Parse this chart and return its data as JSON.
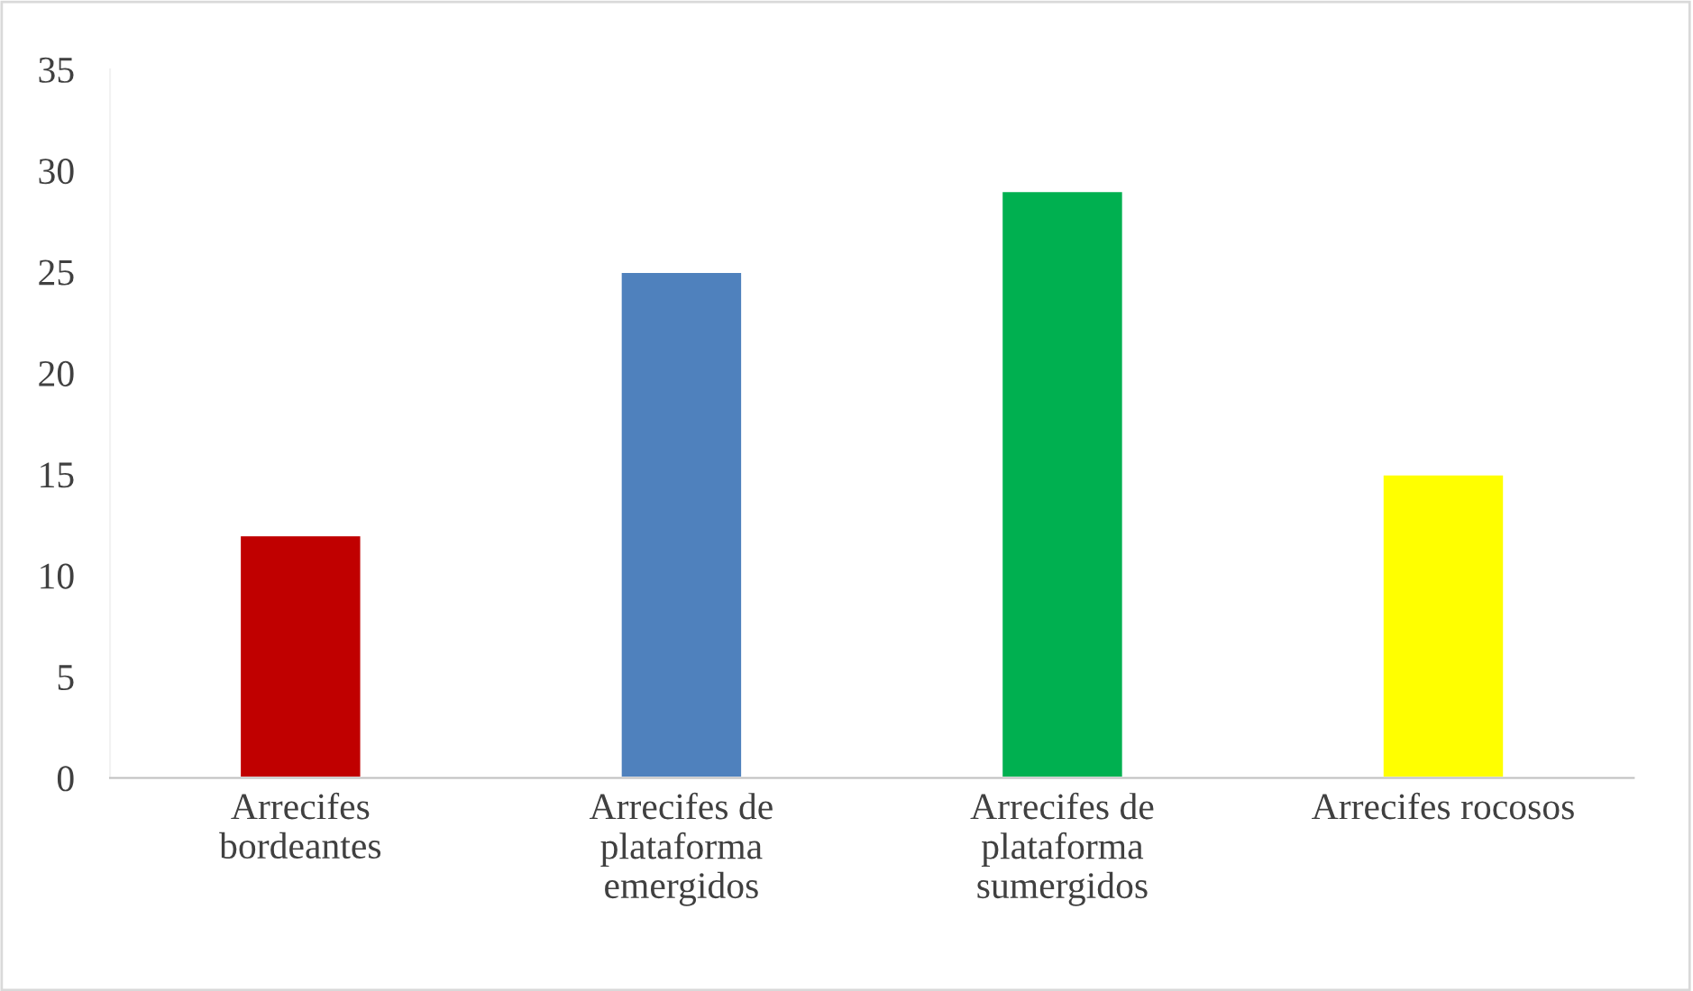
{
  "chart_data": {
    "type": "bar",
    "categories": [
      "Arrecifes\nbordeantes",
      "Arrecifes de\nplataforma\nemergidos",
      "Arrecifes de\nplataforma\nsumergidos",
      "Arrecifes rocosos"
    ],
    "values": [
      12,
      25,
      29,
      15
    ],
    "colors": [
      "#c00000",
      "#4f81bd",
      "#00b050",
      "#ffff00"
    ],
    "ylim": [
      0,
      35
    ],
    "yticks": [
      0,
      5,
      10,
      15,
      20,
      25,
      30,
      35
    ],
    "grid": false,
    "legend": false
  }
}
